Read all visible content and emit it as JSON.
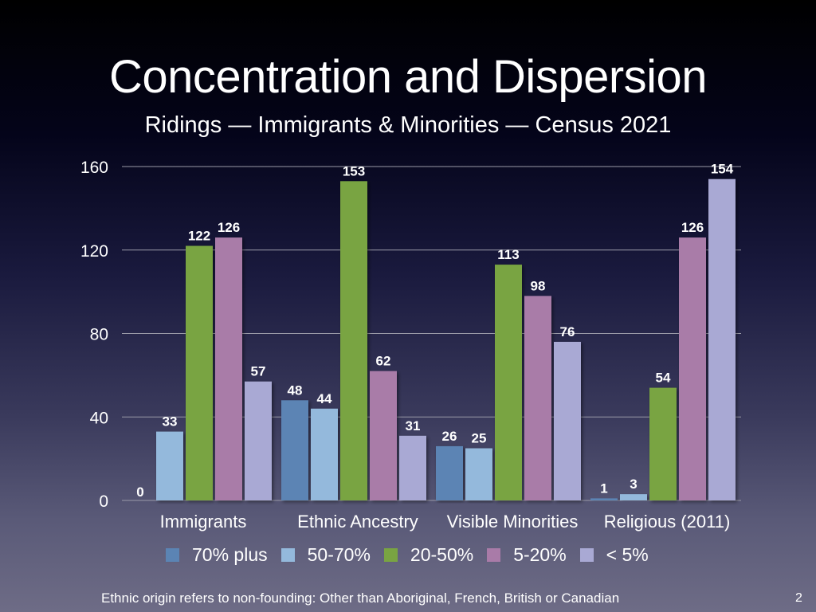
{
  "slide": {
    "title": "Concentration and Dispersion",
    "subtitle": "Ridings — Immigrants & Minorities — Census 2021",
    "footnote": "Ethnic origin refers to non-founding: Other than Aboriginal, French, British or Canadian",
    "slide_number": "2"
  },
  "chart_data": {
    "type": "bar",
    "title": "Concentration and Dispersion",
    "subtitle": "Ridings — Immigrants & Minorities — Census 2021",
    "xlabel": "",
    "ylabel": "",
    "categories": [
      "Immigrants",
      "Ethnic Ancestry",
      "Visible Minorities",
      "Religious (2011)"
    ],
    "series": [
      {
        "name": "70% plus",
        "color": "#5b84b4",
        "values": [
          0,
          48,
          26,
          1
        ]
      },
      {
        "name": "50-70%",
        "color": "#94b9dc",
        "values": [
          33,
          44,
          25,
          3
        ]
      },
      {
        "name": "20-50%",
        "color": "#79a442",
        "values": [
          122,
          153,
          113,
          54
        ]
      },
      {
        "name": "5-20%",
        "color": "#a97ba8",
        "values": [
          126,
          62,
          98,
          126
        ]
      },
      {
        "name": "< 5%",
        "color": "#a9a9d4",
        "values": [
          57,
          31,
          76,
          154
        ]
      }
    ],
    "ylim": [
      0,
      160
    ],
    "yticks": [
      0,
      40,
      80,
      120,
      160
    ],
    "ytick_labels": [
      "0",
      "40",
      "80",
      "120",
      "160"
    ],
    "grid": true,
    "data_labels": true,
    "legend_position": "bottom"
  }
}
